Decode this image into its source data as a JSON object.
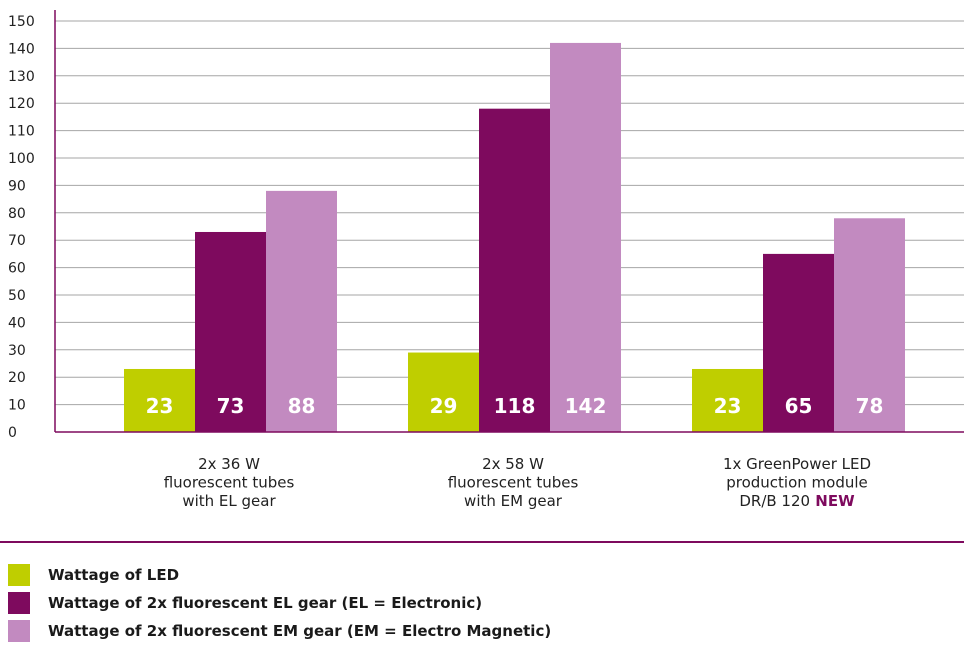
{
  "chart_data": {
    "type": "bar",
    "categories": [
      [
        "2x 36 W",
        "fluorescent tubes",
        "with EL gear"
      ],
      [
        "2x 58 W",
        "fluorescent tubes",
        "with EM gear"
      ],
      [
        "1x GreenPower LED",
        "production module",
        "DR/B 120"
      ]
    ],
    "category_tags": [
      "",
      "",
      "NEW"
    ],
    "series": [
      {
        "name": "Wattage of LED",
        "values": [
          23,
          29,
          23
        ],
        "color": "#bfce00"
      },
      {
        "name": "Wattage of 2x fluorescent EL gear (EL = Electronic)",
        "values": [
          73,
          118,
          65
        ],
        "color": "#7e0a5e"
      },
      {
        "name": "Wattage of 2x fluorescent EM gear (EM = Electro Magnetic)",
        "values": [
          88,
          142,
          78
        ],
        "color": "#c28ac0"
      }
    ],
    "data_labels": [
      [
        "23",
        "73",
        "88"
      ],
      [
        "29",
        "118",
        "142"
      ],
      [
        "23",
        "65",
        "78"
      ]
    ],
    "ylim": [
      0,
      150
    ],
    "yticks": [
      0,
      10,
      20,
      30,
      40,
      50,
      60,
      70,
      80,
      90,
      100,
      110,
      120,
      130,
      140,
      150
    ],
    "grid": true,
    "legend_position": "bottom-left",
    "title": "",
    "xlabel": "",
    "ylabel": ""
  },
  "colors": {
    "axis": "#7e0a5e",
    "grid": "#a6a6a6"
  }
}
